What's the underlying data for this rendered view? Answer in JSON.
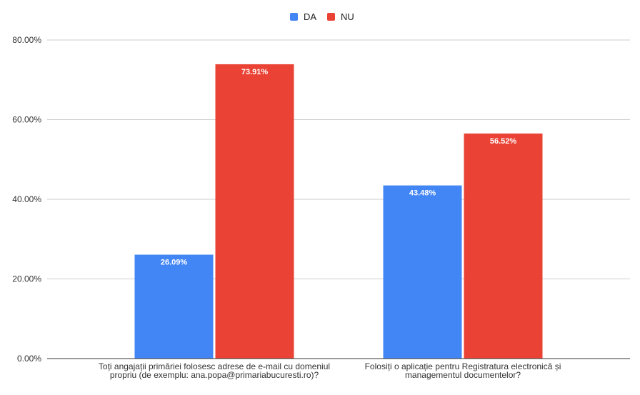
{
  "chart_data": {
    "type": "bar",
    "categories": [
      [
        "Toți angajații primăriei folosesc adrese de e-mail cu domeniul",
        "propriu (de exemplu: ana.popa@primariabucuresti.ro)?"
      ],
      [
        "Folosiți o aplicație pentru Registratura electronică și",
        "managementul documentelor?"
      ]
    ],
    "series": [
      {
        "name": "DA",
        "color": "#4285f4",
        "values": [
          26.09,
          43.48
        ],
        "labels": [
          "26.09%",
          "43.48%"
        ]
      },
      {
        "name": "NU",
        "color": "#ea4335",
        "values": [
          73.91,
          56.52
        ],
        "labels": [
          "73.91%",
          "56.52%"
        ]
      }
    ],
    "ylim": [
      0,
      80
    ],
    "yticks": [
      0,
      20,
      40,
      60,
      80
    ],
    "ytick_labels": [
      "0.00%",
      "20.00%",
      "40.00%",
      "60.00%",
      "80.00%"
    ],
    "grid": true,
    "legend_position": "top-center",
    "title": "",
    "xlabel": "",
    "ylabel": ""
  }
}
